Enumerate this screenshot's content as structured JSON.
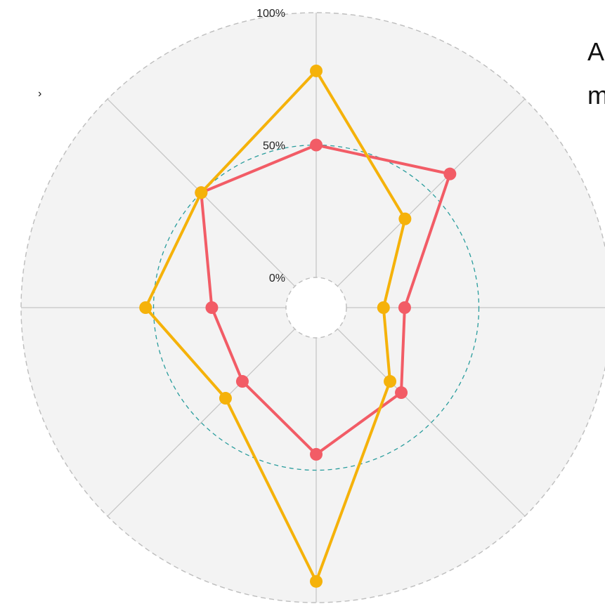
{
  "chart_data": {
    "type": "radar",
    "title": "",
    "axis_count": 8,
    "radial_ticks": [
      "0%",
      "50%",
      "100%"
    ],
    "radial_range": [
      0,
      100
    ],
    "reference_ring": 50,
    "series": [
      {
        "color": "#F25C66",
        "values": [
          50,
          60,
          22,
          34,
          44,
          28,
          28,
          50
        ]
      },
      {
        "color": "#F5B20A",
        "values": [
          78,
          36,
          14,
          28,
          92,
          37,
          53,
          50
        ]
      }
    ],
    "colors": {
      "background_disc": "#F3F3F3",
      "outer_ring": "#BDBDBD",
      "reference_ring": "#2A9D9D",
      "spokes": "#C4C4C4"
    }
  },
  "side_text": {
    "line1": "A",
    "line2": "m"
  },
  "edge_mark": "›"
}
